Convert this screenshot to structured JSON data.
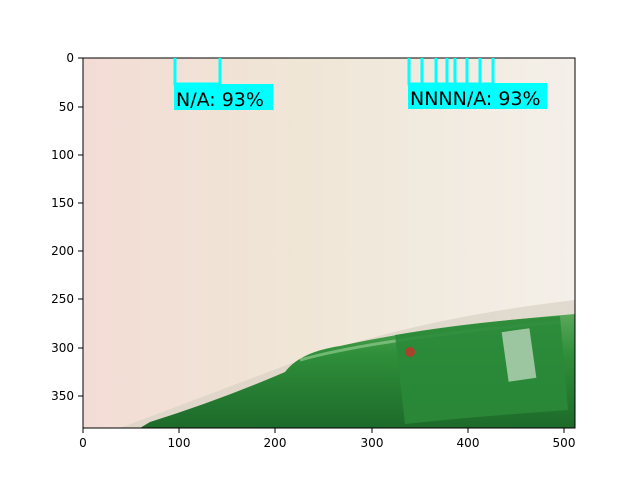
{
  "axes": {
    "x_ticks": [
      "0",
      "100",
      "200",
      "300",
      "400",
      "500"
    ],
    "y_ticks": [
      "0",
      "50",
      "100",
      "150",
      "200",
      "250",
      "300",
      "350"
    ]
  },
  "detections": [
    {
      "label": "N/A: 93%"
    },
    {
      "label": "NNNN/A: 93%"
    }
  ],
  "colors": {
    "box": "#00ffff",
    "bottle": "#2f8f3a",
    "background": "#f1e7dc"
  }
}
